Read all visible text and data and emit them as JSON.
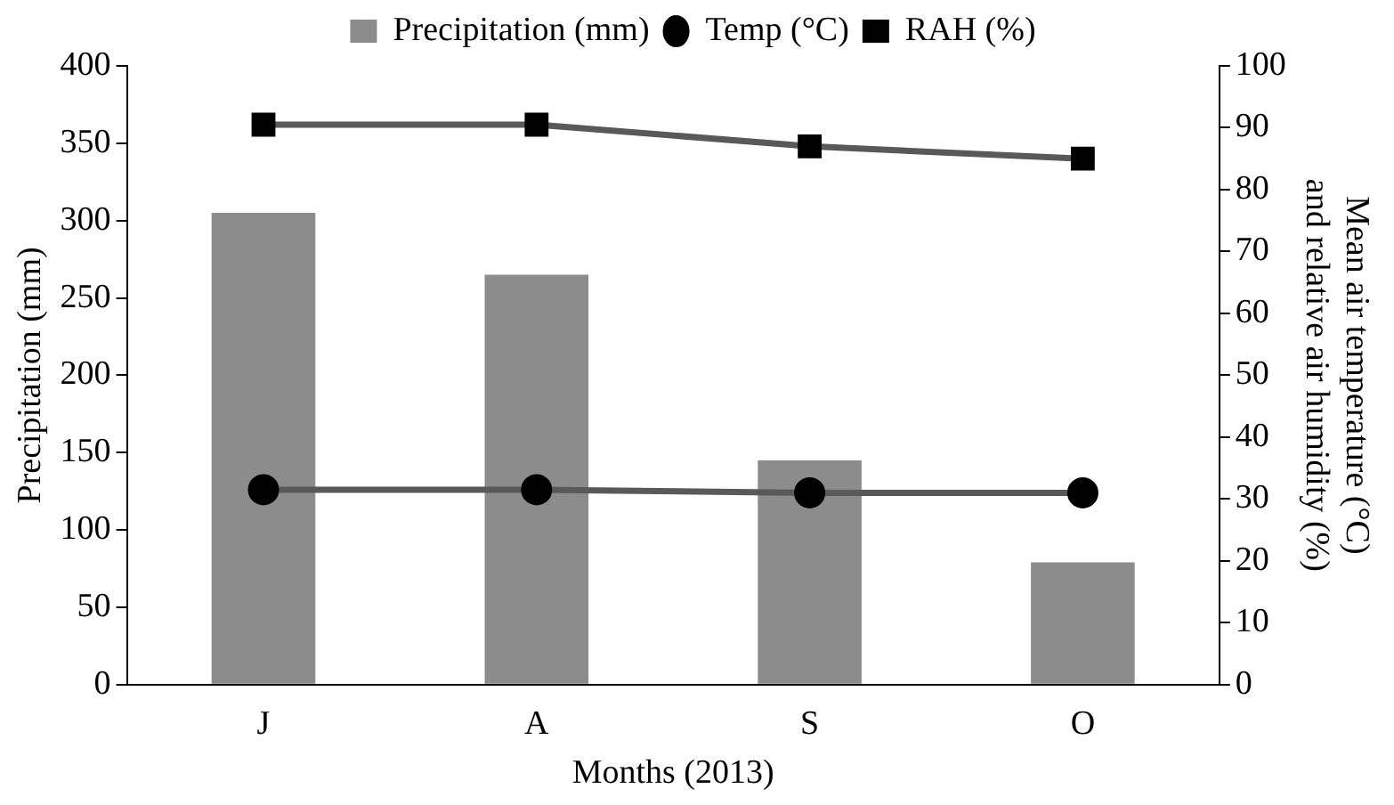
{
  "chart_data": {
    "type": "bar",
    "xlabel": "Months (2013)",
    "ylabel": "Precipitation (mm)",
    "y2label": "Mean air temperature (°C) and relative air humidity (%)",
    "categories": [
      "J",
      "A",
      "S",
      "O"
    ],
    "series": [
      {
        "name": "Precipitation (mm)",
        "color": "#8c8c8c",
        "values": [
          305,
          265,
          145,
          79
        ]
      },
      {
        "name": "Temp (°C)",
        "type": "line",
        "axis": "y2",
        "color": "#595959",
        "marker": "circle",
        "values": [
          31.5,
          31.5,
          31,
          31
        ]
      },
      {
        "name": "RAH (%)",
        "type": "line",
        "axis": "y2",
        "color": "#595959",
        "marker": "square",
        "values": [
          90.5,
          90.5,
          87,
          85
        ]
      }
    ],
    "ylim": [
      0,
      400
    ],
    "yticks": [
      0,
      50,
      100,
      150,
      200,
      250,
      300,
      350,
      400
    ],
    "y2lim": [
      0,
      100
    ],
    "y2ticks": [
      0,
      10,
      20,
      30,
      40,
      50,
      60,
      70,
      80,
      90,
      100
    ],
    "grid": false,
    "legend": "top"
  }
}
